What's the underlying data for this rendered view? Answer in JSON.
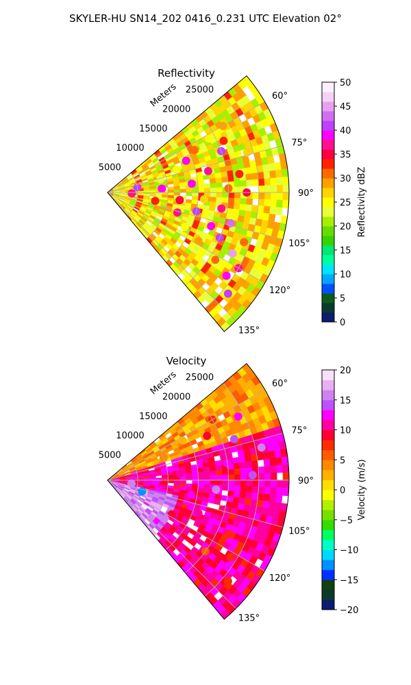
{
  "figure_title": "SKYLER-HU  SN14_202  0416_0.231 UTC Elevation 02°",
  "colors": {
    "reflectivity_scale": [
      "#0c1c6e",
      "#0b3a2a",
      "#0e5a1a",
      "#0050ff",
      "#00a8ff",
      "#00e5ff",
      "#00ff9a",
      "#00e676",
      "#33d400",
      "#66dd00",
      "#a6ef00",
      "#e8ff3a",
      "#ffff00",
      "#ffd400",
      "#ffa000",
      "#ff6a00",
      "#ff2200",
      "#ff0040",
      "#ff1090",
      "#ff00ff",
      "#c040ff",
      "#d070f0",
      "#e6a0f0",
      "#f5d2f5",
      "#fff0ff"
    ],
    "velocity_scale": [
      "#0c1c6e",
      "#0b3a2a",
      "#124012",
      "#0030ff",
      "#0090ff",
      "#00d8ff",
      "#00ffc8",
      "#00ff60",
      "#33dd00",
      "#77e000",
      "#b0f000",
      "#ffff00",
      "#ffdd00",
      "#ffb000",
      "#ff8800",
      "#ff5a00",
      "#ff2a00",
      "#ff0030",
      "#ff00a0",
      "#ff00ff",
      "#c050ff",
      "#d080f0",
      "#e8b0f0",
      "#f8e0f8"
    ]
  },
  "chart_data": [
    {
      "type": "heatmap",
      "subtype": "polar-sector",
      "title": "Reflectivity",
      "radial_label": "Meters",
      "radial_ticks": [
        5000,
        10000,
        15000,
        20000,
        25000
      ],
      "radial_tick_labels": [
        "5000",
        "10000",
        "15000",
        "20000",
        "25000"
      ],
      "radial_range": [
        0,
        30000
      ],
      "azimuth_range_deg": [
        50,
        140
      ],
      "azimuth_ticks_deg": [
        60,
        75,
        90,
        105,
        120,
        135
      ],
      "azimuth_tick_labels": [
        "60°",
        "75°",
        "90°",
        "105°",
        "120°",
        "135°"
      ],
      "grid": true,
      "colorbar": {
        "label": "Reflectivity dBZ",
        "range": [
          0,
          50
        ],
        "ticks": [
          0,
          5,
          10,
          15,
          20,
          25,
          30,
          35,
          40,
          45,
          50
        ],
        "tick_labels": [
          "0",
          "5",
          "10",
          "15",
          "20",
          "25",
          "30",
          "35",
          "40",
          "45",
          "50"
        ]
      },
      "cells": [
        {
          "az": 60,
          "r": 22000,
          "v": 28
        },
        {
          "az": 62,
          "r": 19000,
          "v": 24
        },
        {
          "az": 64,
          "r": 16000,
          "v": 30
        },
        {
          "az": 66,
          "r": 21000,
          "v": 33
        },
        {
          "az": 68,
          "r": 14000,
          "v": 38
        },
        {
          "az": 70,
          "r": 20000,
          "v": 41
        },
        {
          "az": 72,
          "r": 12000,
          "v": 24
        },
        {
          "az": 74,
          "r": 24000,
          "v": 26
        },
        {
          "az": 76,
          "r": 9000,
          "v": 22
        },
        {
          "az": 78,
          "r": 17000,
          "v": 36
        },
        {
          "az": 80,
          "r": 5000,
          "v": 40
        },
        {
          "az": 82,
          "r": 22000,
          "v": 32
        },
        {
          "az": 84,
          "r": 14000,
          "v": 38
        },
        {
          "az": 86,
          "r": 9000,
          "v": 39
        },
        {
          "az": 88,
          "r": 20000,
          "v": 30
        },
        {
          "az": 90,
          "r": 23000,
          "v": 34
        },
        {
          "az": 92,
          "r": 4000,
          "v": 37
        },
        {
          "az": 94,
          "r": 16000,
          "v": 27
        },
        {
          "az": 96,
          "r": 12000,
          "v": 35
        },
        {
          "az": 98,
          "r": 19000,
          "v": 36
        },
        {
          "az": 100,
          "r": 8000,
          "v": 33
        },
        {
          "az": 102,
          "r": 15000,
          "v": 40
        },
        {
          "az": 104,
          "r": 21000,
          "v": 42
        },
        {
          "az": 106,
          "r": 12000,
          "v": 36
        },
        {
          "az": 108,
          "r": 18000,
          "v": 38
        },
        {
          "az": 110,
          "r": 24000,
          "v": 30
        },
        {
          "az": 112,
          "r": 20000,
          "v": 40
        },
        {
          "az": 114,
          "r": 14000,
          "v": 24
        },
        {
          "az": 116,
          "r": 23000,
          "v": 44
        },
        {
          "az": 118,
          "r": 17000,
          "v": 28
        },
        {
          "az": 120,
          "r": 25000,
          "v": 37
        },
        {
          "az": 122,
          "r": 21000,
          "v": 30
        },
        {
          "az": 125,
          "r": 24000,
          "v": 38
        },
        {
          "az": 130,
          "r": 26000,
          "v": 41
        }
      ]
    },
    {
      "type": "heatmap",
      "subtype": "polar-sector",
      "title": "Velocity",
      "radial_label": "Meters",
      "radial_ticks": [
        5000,
        10000,
        15000,
        20000,
        25000
      ],
      "radial_tick_labels": [
        "5000",
        "10000",
        "15000",
        "20000",
        "25000"
      ],
      "radial_range": [
        0,
        30000
      ],
      "azimuth_range_deg": [
        50,
        140
      ],
      "azimuth_ticks_deg": [
        60,
        75,
        90,
        105,
        120,
        135
      ],
      "azimuth_tick_labels": [
        "60°",
        "75°",
        "90°",
        "105°",
        "120°",
        "135°"
      ],
      "grid": true,
      "colorbar": {
        "label": "Velocity (m/s)",
        "range": [
          -20,
          20
        ],
        "ticks": [
          -20,
          -15,
          -10,
          -5,
          0,
          5,
          10,
          15,
          20
        ],
        "tick_labels": [
          "−20",
          "−15",
          "−10",
          "−5",
          "0",
          "5",
          "10",
          "15",
          "20"
        ]
      },
      "cells": [
        {
          "az": 60,
          "r": 20000,
          "v": 8
        },
        {
          "az": 62,
          "r": 14000,
          "v": 3
        },
        {
          "az": 64,
          "r": 24000,
          "v": 12
        },
        {
          "az": 66,
          "r": 18000,
          "v": 9
        },
        {
          "az": 68,
          "r": 10000,
          "v": 4
        },
        {
          "az": 72,
          "r": 22000,
          "v": 14
        },
        {
          "az": 75,
          "r": 16000,
          "v": 10
        },
        {
          "az": 78,
          "r": 26000,
          "v": 15
        },
        {
          "az": 82,
          "r": 20000,
          "v": 13
        },
        {
          "az": 85,
          "r": 12000,
          "v": 10
        },
        {
          "az": 88,
          "r": 24000,
          "v": 14
        },
        {
          "az": 92,
          "r": 8000,
          "v": 12
        },
        {
          "az": 95,
          "r": 18000,
          "v": 15
        },
        {
          "az": 98,
          "r": 4000,
          "v": 16
        },
        {
          "az": 100,
          "r": 14000,
          "v": 13
        },
        {
          "az": 104,
          "r": 20000,
          "v": 11
        },
        {
          "az": 108,
          "r": 6000,
          "v": -12
        },
        {
          "az": 110,
          "r": 16000,
          "v": 10
        },
        {
          "az": 114,
          "r": 22000,
          "v": 8
        },
        {
          "az": 118,
          "r": 12000,
          "v": 9
        },
        {
          "az": 122,
          "r": 24000,
          "v": 7
        },
        {
          "az": 126,
          "r": 20000,
          "v": 6
        },
        {
          "az": 130,
          "r": 26000,
          "v": 8
        }
      ]
    }
  ]
}
